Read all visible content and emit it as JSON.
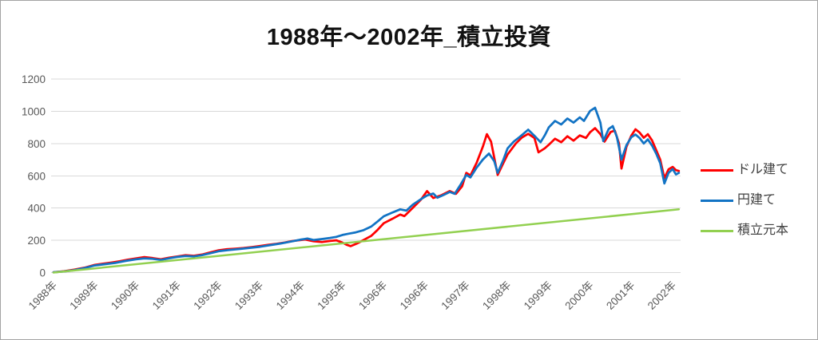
{
  "chart_data": {
    "type": "line",
    "title": "1988年～2002年_積立投資",
    "xlabel": "",
    "ylabel": "",
    "ylim": [
      0,
      1200
    ],
    "grid": "horizontal",
    "legend_position": "right",
    "axis": {
      "label_color": "#595959",
      "grid_color": "#D9D9D9"
    },
    "y_ticks": [
      0,
      200,
      400,
      600,
      800,
      1000,
      1200
    ],
    "x_ticks": [
      "1988年",
      "1989年",
      "1990年",
      "1991年",
      "1992年",
      "1993年",
      "1994年",
      "1995年",
      "1996年",
      "1996年",
      "1997年",
      "1998年",
      "1999年",
      "2000年",
      "2001年",
      "2002年"
    ],
    "series": [
      {
        "name": "ドル建て",
        "color": "#FF0000",
        "points": [
          [
            0,
            2
          ],
          [
            0.25,
            8
          ],
          [
            0.5,
            18
          ],
          [
            0.75,
            30
          ],
          [
            1,
            48
          ],
          [
            1.2,
            55
          ],
          [
            1.4,
            62
          ],
          [
            1.6,
            70
          ],
          [
            1.8,
            80
          ],
          [
            2,
            88
          ],
          [
            2.2,
            96
          ],
          [
            2.4,
            90
          ],
          [
            2.6,
            82
          ],
          [
            2.8,
            92
          ],
          [
            3,
            100
          ],
          [
            3.2,
            108
          ],
          [
            3.4,
            104
          ],
          [
            3.6,
            112
          ],
          [
            3.8,
            125
          ],
          [
            4,
            138
          ],
          [
            4.2,
            145
          ],
          [
            4.4,
            148
          ],
          [
            4.6,
            152
          ],
          [
            4.8,
            158
          ],
          [
            5,
            165
          ],
          [
            5.2,
            172
          ],
          [
            5.4,
            178
          ],
          [
            5.6,
            186
          ],
          [
            5.8,
            196
          ],
          [
            6.1,
            205
          ],
          [
            6.3,
            194
          ],
          [
            6.5,
            189
          ],
          [
            6.7,
            196
          ],
          [
            6.85,
            200
          ],
          [
            7,
            186
          ],
          [
            7.1,
            172
          ],
          [
            7.2,
            164
          ],
          [
            7.35,
            180
          ],
          [
            7.5,
            200
          ],
          [
            7.7,
            228
          ],
          [
            7.85,
            264
          ],
          [
            8,
            306
          ],
          [
            8.2,
            332
          ],
          [
            8.4,
            360
          ],
          [
            8.5,
            350
          ],
          [
            8.7,
            400
          ],
          [
            8.9,
            452
          ],
          [
            9.05,
            505
          ],
          [
            9.2,
            462
          ],
          [
            9.4,
            480
          ],
          [
            9.6,
            505
          ],
          [
            9.75,
            488
          ],
          [
            9.9,
            535
          ],
          [
            10,
            618
          ],
          [
            10.1,
            602
          ],
          [
            10.25,
            680
          ],
          [
            10.4,
            780
          ],
          [
            10.5,
            858
          ],
          [
            10.6,
            812
          ],
          [
            10.68,
            710
          ],
          [
            10.76,
            605
          ],
          [
            10.9,
            680
          ],
          [
            11,
            732
          ],
          [
            11.2,
            800
          ],
          [
            11.35,
            838
          ],
          [
            11.5,
            860
          ],
          [
            11.65,
            835
          ],
          [
            11.75,
            745
          ],
          [
            11.9,
            770
          ],
          [
            12,
            792
          ],
          [
            12.15,
            830
          ],
          [
            12.3,
            808
          ],
          [
            12.45,
            845
          ],
          [
            12.6,
            818
          ],
          [
            12.75,
            850
          ],
          [
            12.9,
            835
          ],
          [
            13,
            870
          ],
          [
            13.12,
            895
          ],
          [
            13.25,
            858
          ],
          [
            13.35,
            812
          ],
          [
            13.5,
            872
          ],
          [
            13.6,
            880
          ],
          [
            13.7,
            800
          ],
          [
            13.76,
            645
          ],
          [
            13.88,
            780
          ],
          [
            14,
            850
          ],
          [
            14.1,
            888
          ],
          [
            14.2,
            868
          ],
          [
            14.3,
            836
          ],
          [
            14.4,
            858
          ],
          [
            14.5,
            820
          ],
          [
            14.6,
            760
          ],
          [
            14.7,
            700
          ],
          [
            14.8,
            585
          ],
          [
            14.9,
            640
          ],
          [
            15,
            655
          ],
          [
            15.08,
            635
          ],
          [
            15.15,
            630
          ]
        ]
      },
      {
        "name": "円建て",
        "color": "#1273C4",
        "points": [
          [
            0,
            2
          ],
          [
            0.25,
            7
          ],
          [
            0.5,
            15
          ],
          [
            0.75,
            28
          ],
          [
            1,
            44
          ],
          [
            1.25,
            52
          ],
          [
            1.5,
            60
          ],
          [
            1.75,
            72
          ],
          [
            2,
            82
          ],
          [
            2.2,
            88
          ],
          [
            2.4,
            85
          ],
          [
            2.6,
            78
          ],
          [
            2.8,
            88
          ],
          [
            3,
            97
          ],
          [
            3.2,
            103
          ],
          [
            3.4,
            100
          ],
          [
            3.6,
            108
          ],
          [
            3.8,
            120
          ],
          [
            4,
            132
          ],
          [
            4.25,
            140
          ],
          [
            4.5,
            146
          ],
          [
            4.75,
            153
          ],
          [
            5,
            160
          ],
          [
            5.25,
            170
          ],
          [
            5.5,
            180
          ],
          [
            5.75,
            192
          ],
          [
            6,
            205
          ],
          [
            6.15,
            211
          ],
          [
            6.3,
            202
          ],
          [
            6.5,
            208
          ],
          [
            6.7,
            215
          ],
          [
            6.85,
            221
          ],
          [
            7,
            233
          ],
          [
            7.15,
            241
          ],
          [
            7.3,
            248
          ],
          [
            7.5,
            262
          ],
          [
            7.7,
            286
          ],
          [
            7.85,
            316
          ],
          [
            8,
            349
          ],
          [
            8.2,
            371
          ],
          [
            8.4,
            392
          ],
          [
            8.55,
            384
          ],
          [
            8.7,
            420
          ],
          [
            8.9,
            455
          ],
          [
            9.05,
            478
          ],
          [
            9.2,
            490
          ],
          [
            9.3,
            464
          ],
          [
            9.45,
            481
          ],
          [
            9.6,
            500
          ],
          [
            9.72,
            488
          ],
          [
            9.85,
            540
          ],
          [
            10,
            605
          ],
          [
            10.1,
            590
          ],
          [
            10.25,
            650
          ],
          [
            10.4,
            700
          ],
          [
            10.55,
            738
          ],
          [
            10.68,
            690
          ],
          [
            10.76,
            618
          ],
          [
            10.9,
            700
          ],
          [
            11,
            770
          ],
          [
            11.15,
            812
          ],
          [
            11.3,
            842
          ],
          [
            11.5,
            886
          ],
          [
            11.65,
            848
          ],
          [
            11.8,
            808
          ],
          [
            11.9,
            850
          ],
          [
            12,
            900
          ],
          [
            12.15,
            940
          ],
          [
            12.3,
            918
          ],
          [
            12.45,
            955
          ],
          [
            12.6,
            930
          ],
          [
            12.75,
            962
          ],
          [
            12.85,
            940
          ],
          [
            13,
            1002
          ],
          [
            13.12,
            1022
          ],
          [
            13.25,
            930
          ],
          [
            13.32,
            815
          ],
          [
            13.45,
            890
          ],
          [
            13.55,
            908
          ],
          [
            13.65,
            840
          ],
          [
            13.76,
            700
          ],
          [
            13.88,
            790
          ],
          [
            14,
            840
          ],
          [
            14.1,
            856
          ],
          [
            14.2,
            834
          ],
          [
            14.3,
            800
          ],
          [
            14.4,
            826
          ],
          [
            14.5,
            788
          ],
          [
            14.6,
            738
          ],
          [
            14.7,
            678
          ],
          [
            14.8,
            552
          ],
          [
            14.9,
            618
          ],
          [
            15,
            642
          ],
          [
            15.08,
            608
          ],
          [
            15.15,
            618
          ]
        ]
      },
      {
        "name": "積立元本",
        "color": "#92D050",
        "points": [
          [
            0,
            0
          ],
          [
            15.15,
            392
          ]
        ]
      }
    ]
  }
}
